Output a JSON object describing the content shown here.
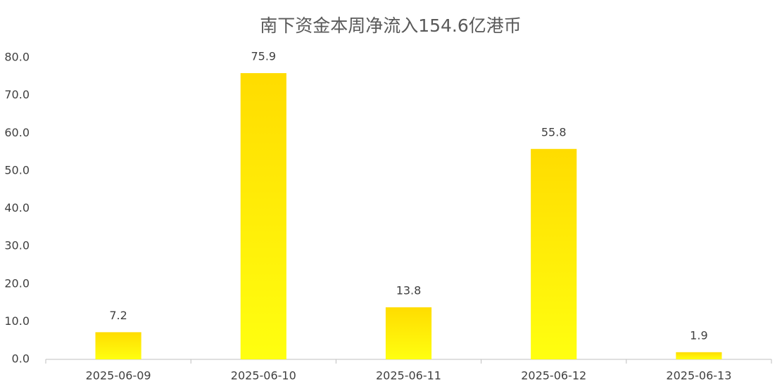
{
  "chart_data": {
    "type": "bar",
    "title": "南下资金本周净流入154.6亿港币",
    "categories": [
      "2025-06-09",
      "2025-06-10",
      "2025-06-11",
      "2025-06-12",
      "2025-06-13"
    ],
    "values": [
      7.2,
      75.9,
      13.8,
      55.8,
      1.9
    ],
    "color": "#ffdc00",
    "ylim": [
      0,
      80
    ],
    "yticks": [
      {
        "value": 0,
        "label": "0.0"
      },
      {
        "value": 10,
        "label": "10.0"
      },
      {
        "value": 20,
        "label": "20.0"
      },
      {
        "value": 30,
        "label": "30.0"
      },
      {
        "value": 40,
        "label": "40.0"
      },
      {
        "value": 50,
        "label": "50.0"
      },
      {
        "value": 60,
        "label": "60.0"
      },
      {
        "value": 70,
        "label": "70.0"
      },
      {
        "value": 80,
        "label": "80.0"
      }
    ],
    "grid": false
  }
}
